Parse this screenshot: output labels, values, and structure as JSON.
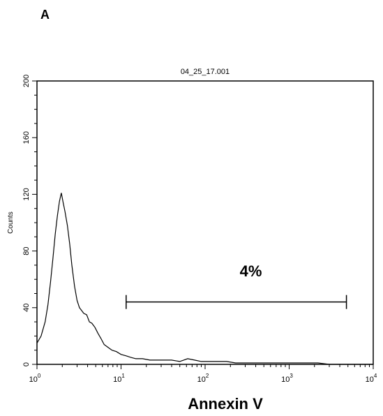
{
  "panel_label": "A",
  "chart_data": {
    "type": "line",
    "title": "04_25_17.001",
    "xlabel": "Annexin V",
    "ylabel": "Counts",
    "x_scale": "log",
    "xlim": [
      1,
      10000
    ],
    "ylim": [
      0,
      200
    ],
    "x_ticks": [
      {
        "value": 1,
        "base": "10",
        "exp": "0"
      },
      {
        "value": 10,
        "base": "10",
        "exp": "1"
      },
      {
        "value": 100,
        "base": "10",
        "exp": "2"
      },
      {
        "value": 1000,
        "base": "10",
        "exp": "3"
      },
      {
        "value": 10000,
        "base": "10",
        "exp": "4"
      }
    ],
    "y_ticks": [
      {
        "value": 0,
        "label": "0"
      },
      {
        "value": 40,
        "label": "40"
      },
      {
        "value": 80,
        "label": "80"
      },
      {
        "value": 120,
        "label": "120"
      },
      {
        "value": 160,
        "label": "160"
      },
      {
        "value": 200,
        "label": "200"
      }
    ],
    "series": [
      {
        "line_color": "#000000",
        "x": [
          1.0,
          1.12,
          1.25,
          1.35,
          1.45,
          1.55,
          1.65,
          1.75,
          1.85,
          1.95,
          2.05,
          2.15,
          2.3,
          2.45,
          2.6,
          2.8,
          3.0,
          3.2,
          3.4,
          3.6,
          3.9,
          4.2,
          4.5,
          4.9,
          5.3,
          5.8,
          6.3,
          7.0,
          7.8,
          8.8,
          10,
          11.5,
          13,
          15,
          18,
          22,
          27,
          33,
          40,
          50,
          62,
          75,
          90,
          110,
          140,
          180,
          230,
          300,
          400,
          520,
          700,
          900,
          1200,
          1600,
          2200,
          3000,
          4000,
          6000,
          8000,
          10000
        ],
        "y": [
          15,
          20,
          30,
          42,
          58,
          75,
          92,
          105,
          115,
          121,
          114,
          108,
          98,
          85,
          70,
          55,
          45,
          40,
          38,
          36,
          35,
          30,
          29,
          26,
          22,
          18,
          14,
          12,
          10,
          9,
          7,
          6,
          5,
          4,
          4,
          3,
          3,
          3,
          3,
          2,
          4,
          3,
          2,
          2,
          2,
          2,
          1,
          1,
          1,
          1,
          1,
          1,
          1,
          1,
          1,
          0,
          0,
          0,
          0,
          0
        ]
      }
    ],
    "gate": {
      "x_start": 11.5,
      "x_end": 4800,
      "y": 44
    },
    "annotations": [
      {
        "text": "4%",
        "x": 350,
        "y": 62
      }
    ]
  }
}
